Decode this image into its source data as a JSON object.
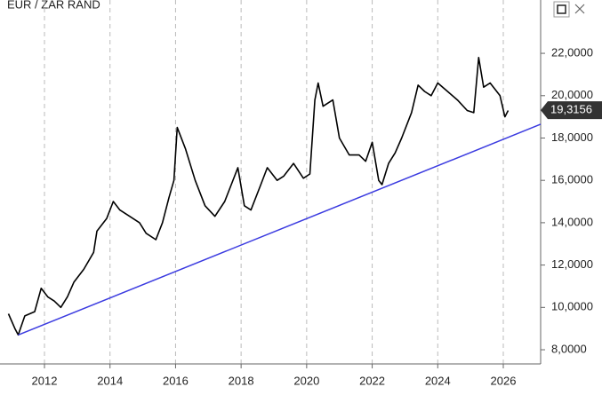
{
  "chart_data": {
    "type": "line",
    "title": "EUR / ZAR RAND",
    "x": [
      2010.9,
      2011.1,
      2011.2,
      2011.4,
      2011.7,
      2011.9,
      2012.1,
      2012.3,
      2012.5,
      2012.7,
      2012.9,
      2013.2,
      2013.5,
      2013.6,
      2013.9,
      2014.1,
      2014.3,
      2014.6,
      2014.9,
      2015.1,
      2015.4,
      2015.6,
      2015.8,
      2015.95,
      2016.05,
      2016.3,
      2016.6,
      2016.9,
      2017.2,
      2017.5,
      2017.7,
      2017.9,
      2018.1,
      2018.3,
      2018.6,
      2018.8,
      2019.1,
      2019.3,
      2019.6,
      2019.9,
      2020.1,
      2020.25,
      2020.35,
      2020.5,
      2020.8,
      2021.0,
      2021.3,
      2021.6,
      2021.8,
      2022.0,
      2022.2,
      2022.3,
      2022.5,
      2022.7,
      2022.9,
      2023.2,
      2023.4,
      2023.6,
      2023.8,
      2024.0,
      2024.3,
      2024.6,
      2024.9,
      2025.1,
      2025.25,
      2025.4,
      2025.6,
      2025.9,
      2026.05,
      2026.15
    ],
    "values": [
      9.7,
      9.0,
      8.7,
      9.6,
      9.8,
      10.9,
      10.5,
      10.3,
      10.0,
      10.5,
      11.2,
      11.8,
      12.6,
      13.6,
      14.2,
      15.0,
      14.6,
      14.3,
      14.0,
      13.5,
      13.2,
      14.0,
      15.2,
      16.0,
      18.5,
      17.5,
      16.0,
      14.8,
      14.3,
      15.0,
      15.8,
      16.6,
      14.8,
      14.6,
      15.8,
      16.6,
      16.0,
      16.2,
      16.8,
      16.1,
      16.3,
      19.8,
      20.6,
      19.5,
      19.8,
      18.0,
      17.2,
      17.2,
      16.9,
      17.8,
      16.0,
      15.8,
      16.8,
      17.3,
      18.0,
      19.2,
      20.5,
      20.2,
      20.0,
      20.6,
      20.2,
      19.8,
      19.3,
      19.2,
      21.8,
      20.4,
      20.6,
      20.0,
      19.0,
      19.3
    ],
    "color": "#000000",
    "trendline": {
      "x": [
        2011.2,
        2027.14
      ],
      "values": [
        8.7,
        18.65
      ],
      "color": "#3b3be0"
    },
    "last_value": {
      "value": 19.3156,
      "label": "19,3156"
    },
    "xlim": [
      2010.86,
      2027.14
    ],
    "xticks": [
      2012,
      2014,
      2016,
      2018,
      2020,
      2022,
      2024,
      2026
    ],
    "ylim": [
      7.33,
      23.68
    ],
    "yticks": [
      {
        "value": 8,
        "label": "8,0000"
      },
      {
        "value": 10,
        "label": "10,0000"
      },
      {
        "value": 12,
        "label": "12,0000"
      },
      {
        "value": 14,
        "label": "14,0000"
      },
      {
        "value": 16,
        "label": "16,0000"
      },
      {
        "value": 18,
        "label": "18,0000"
      },
      {
        "value": 20,
        "label": "20,0000"
      },
      {
        "value": 22,
        "label": "22,0000"
      }
    ],
    "grid": true
  }
}
